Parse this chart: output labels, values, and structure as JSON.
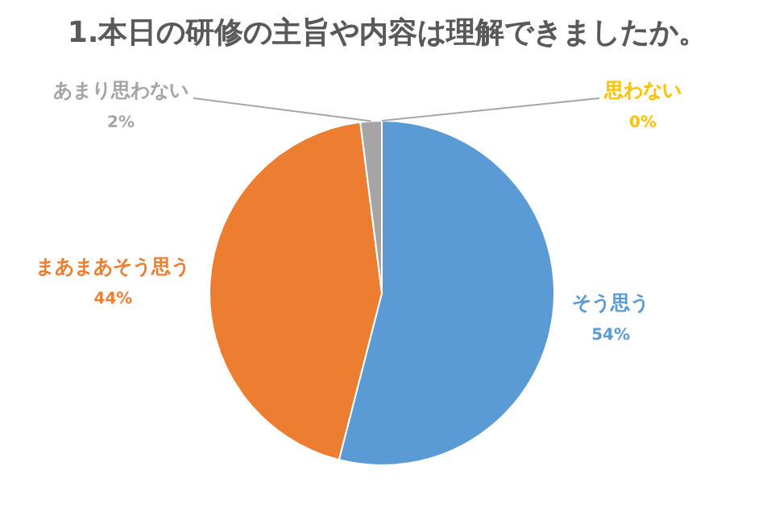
{
  "chart_data": {
    "type": "pie",
    "title": "1.本日の研修の主旨や内容は理解できましたか。",
    "categories": [
      "そう思う",
      "まあまあそう思う",
      "あまり思わない",
      "思わない"
    ],
    "values": [
      54,
      44,
      2,
      0
    ],
    "value_labels": [
      "54%",
      "44%",
      "2%",
      "0%"
    ],
    "colors": [
      "#5b9bd5",
      "#ed7d31",
      "#a5a5a5",
      "#ffc000"
    ],
    "legend": false
  }
}
